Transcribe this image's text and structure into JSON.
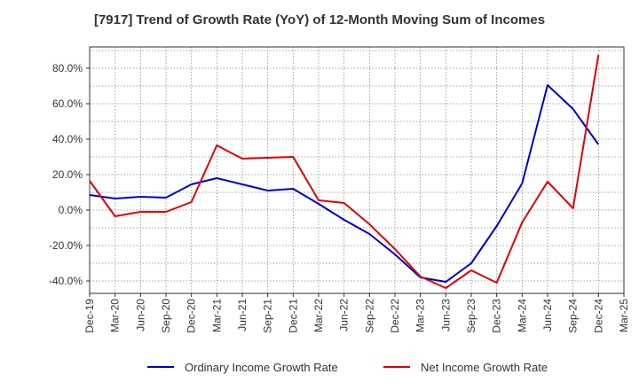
{
  "chart_data": {
    "type": "line",
    "title": "[7917]  Trend of Growth Rate (YoY) of 12-Month Moving Sum of Incomes",
    "xlabel": "",
    "ylabel": "",
    "categories": [
      "Dec-19",
      "Mar-20",
      "Jun-20",
      "Sep-20",
      "Dec-20",
      "Mar-21",
      "Jun-21",
      "Sep-21",
      "Dec-21",
      "Mar-22",
      "Jun-22",
      "Sep-22",
      "Dec-22",
      "Mar-23",
      "Jun-23",
      "Sep-23",
      "Dec-23",
      "Mar-24",
      "Jun-24",
      "Sep-24",
      "Dec-24",
      "Mar-25"
    ],
    "ylim": [
      -47,
      92
    ],
    "y_ticks": [
      80,
      60,
      40,
      20,
      0,
      -20,
      -40
    ],
    "y_tick_labels": [
      "80.0%",
      "60.0%",
      "40.0%",
      "20.0%",
      "0.0%",
      "-20.0%",
      "-40.0%"
    ],
    "grid": true,
    "legend_position": "bottom",
    "series": [
      {
        "name": "Ordinary Income Growth Rate",
        "color": "#0000cc",
        "values": [
          8.5,
          6.5,
          7.5,
          7.0,
          14.5,
          18.0,
          14.5,
          11.0,
          12.0,
          3.5,
          -5.5,
          -13.5,
          -25.0,
          -38.0,
          -40.5,
          -30.0,
          -9.0,
          15.0,
          70.5,
          57.0,
          37.0,
          null
        ]
      },
      {
        "name": "Net Income Growth Rate",
        "color": "#e00000",
        "values": [
          16.5,
          -3.5,
          -1.0,
          -1.0,
          4.5,
          36.5,
          29.0,
          29.5,
          30.0,
          5.5,
          4.0,
          -8.0,
          -22.0,
          -37.5,
          -44.0,
          -34.0,
          -41.0,
          -7.0,
          16.0,
          1.0,
          87.5,
          null
        ]
      }
    ]
  }
}
